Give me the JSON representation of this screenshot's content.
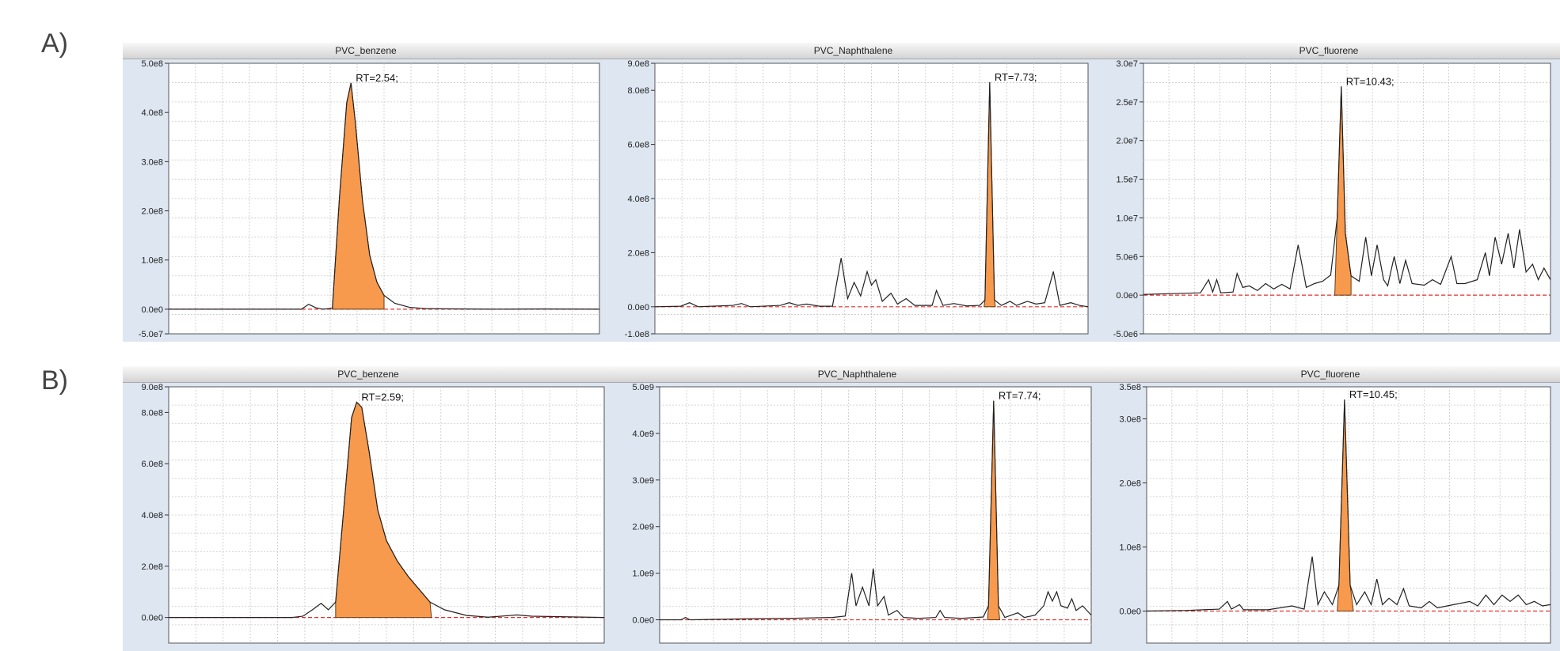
{
  "figure_labels": {
    "a": "A)",
    "b": "B)"
  },
  "colors": {
    "peak_fill": "#f79a4e",
    "trace": "#222222",
    "baseline": "#e03030",
    "panel_bg": "#dde6f1",
    "grid": "#c8c8c8"
  },
  "chart_data": [
    {
      "id": "A1",
      "type": "line",
      "title": "PVC_benzene",
      "annotation": "RT=2.54;",
      "yticks": [
        "5.0e8",
        "4.0e8",
        "3.0e8",
        "2.0e8",
        "1.0e8",
        "0.0e0",
        "-5.0e7"
      ],
      "yvalues": [
        500000000.0,
        400000000.0,
        300000000.0,
        200000000.0,
        100000000.0,
        0,
        -50000000.0
      ],
      "ylim": [
        -50000000.0,
        500000000.0
      ],
      "xlim": [
        0,
        6
      ],
      "peak_rt": 2.54,
      "peak_height": 460000000.0,
      "points": [
        [
          0,
          0
        ],
        [
          1.0,
          0
        ],
        [
          1.85,
          0.0
        ],
        [
          1.95,
          10000000.0
        ],
        [
          2.05,
          3000000.0
        ],
        [
          2.15,
          0.0
        ],
        [
          2.28,
          2000000.0
        ],
        [
          2.38,
          230000000.0
        ],
        [
          2.48,
          420000000.0
        ],
        [
          2.54,
          460000000.0
        ],
        [
          2.6,
          380000000.0
        ],
        [
          2.7,
          220000000.0
        ],
        [
          2.8,
          110000000.0
        ],
        [
          2.9,
          55000000.0
        ],
        [
          3.0,
          28000000.0
        ],
        [
          3.15,
          12000000.0
        ],
        [
          3.35,
          4000000.0
        ],
        [
          3.6,
          1000000.0
        ],
        [
          4.5,
          0
        ],
        [
          5.2,
          500000.0
        ],
        [
          6,
          0
        ]
      ],
      "fill_range": [
        2.28,
        3.0
      ]
    },
    {
      "id": "A2",
      "type": "line",
      "title": "PVC_Naphthalene",
      "annotation": "RT=7.73;",
      "yticks": [
        "9.0e8",
        "8.0e8",
        "6.0e8",
        "4.0e8",
        "2.0e8",
        "0.0e0",
        "-1.0e8"
      ],
      "yvalues": [
        900000000.0,
        800000000.0,
        600000000.0,
        400000000.0,
        200000000.0,
        0,
        -100000000.0
      ],
      "ylim": [
        -100000000.0,
        900000000.0
      ],
      "xlim": [
        0,
        10
      ],
      "peak_rt": 7.73,
      "peak_height": 830000000.0,
      "points": [
        [
          0,
          0
        ],
        [
          0.6,
          2000000.0
        ],
        [
          0.8,
          15000000.0
        ],
        [
          1.0,
          0
        ],
        [
          1.8,
          5000000.0
        ],
        [
          2.0,
          12000000.0
        ],
        [
          2.2,
          0
        ],
        [
          2.9,
          5000000.0
        ],
        [
          3.1,
          15000000.0
        ],
        [
          3.3,
          5000000.0
        ],
        [
          3.5,
          10000000.0
        ],
        [
          3.8,
          2000000.0
        ],
        [
          4.1,
          2000000.0
        ],
        [
          4.3,
          180000000.0
        ],
        [
          4.45,
          30000000.0
        ],
        [
          4.6,
          90000000.0
        ],
        [
          4.75,
          40000000.0
        ],
        [
          4.9,
          130000000.0
        ],
        [
          5.0,
          80000000.0
        ],
        [
          5.1,
          100000000.0
        ],
        [
          5.25,
          20000000.0
        ],
        [
          5.45,
          50000000.0
        ],
        [
          5.6,
          10000000.0
        ],
        [
          5.8,
          30000000.0
        ],
        [
          6.0,
          5000000.0
        ],
        [
          6.4,
          5000000.0
        ],
        [
          6.5,
          60000000.0
        ],
        [
          6.65,
          5000000.0
        ],
        [
          6.9,
          12000000.0
        ],
        [
          7.2,
          3000000.0
        ],
        [
          7.5,
          5000000.0
        ],
        [
          7.62,
          25000000.0
        ],
        [
          7.73,
          830000000.0
        ],
        [
          7.84,
          25000000.0
        ],
        [
          8.0,
          5000000.0
        ],
        [
          8.2,
          20000000.0
        ],
        [
          8.35,
          5000000.0
        ],
        [
          8.6,
          20000000.0
        ],
        [
          8.8,
          10000000.0
        ],
        [
          9.0,
          15000000.0
        ],
        [
          9.2,
          130000000.0
        ],
        [
          9.35,
          5000000.0
        ],
        [
          9.6,
          15000000.0
        ],
        [
          9.8,
          5000000.0
        ],
        [
          10,
          0
        ]
      ],
      "fill_range": [
        7.6,
        7.86
      ]
    },
    {
      "id": "A3",
      "type": "line",
      "title": "PVC_fluorene",
      "annotation": "RT=10.43;",
      "yticks": [
        "3.0e7",
        "2.5e7",
        "2.0e7",
        "1.5e7",
        "1.0e7",
        "5.0e6",
        "0.0e0",
        "-5.0e6"
      ],
      "yvalues": [
        30000000.0,
        25000000.0,
        20000000.0,
        15000000.0,
        10000000.0,
        5000000.0,
        0,
        -5000000.0
      ],
      "ylim": [
        -5000000.0,
        30000000.0
      ],
      "xlim": [
        8,
        13
      ],
      "peak_rt": 10.43,
      "peak_height": 27000000.0,
      "points": [
        [
          8,
          100000.0
        ],
        [
          8.7,
          300000.0
        ],
        [
          8.8,
          2000000.0
        ],
        [
          8.85,
          400000.0
        ],
        [
          8.9,
          2000000.0
        ],
        [
          8.95,
          300000.0
        ],
        [
          9.1,
          400000.0
        ],
        [
          9.15,
          2800000.0
        ],
        [
          9.22,
          1000000.0
        ],
        [
          9.3,
          1200000.0
        ],
        [
          9.4,
          600000.0
        ],
        [
          9.5,
          1500000.0
        ],
        [
          9.6,
          800000.0
        ],
        [
          9.7,
          1400000.0
        ],
        [
          9.8,
          800000.0
        ],
        [
          9.9,
          6500000.0
        ],
        [
          10.0,
          1000000.0
        ],
        [
          10.1,
          1500000.0
        ],
        [
          10.2,
          1800000.0
        ],
        [
          10.3,
          2600000.0
        ],
        [
          10.38,
          10000000.0
        ],
        [
          10.43,
          27000000.0
        ],
        [
          10.48,
          8000000.0
        ],
        [
          10.55,
          2500000.0
        ],
        [
          10.65,
          1800000.0
        ],
        [
          10.73,
          7500000.0
        ],
        [
          10.8,
          2500000.0
        ],
        [
          10.87,
          6500000.0
        ],
        [
          10.95,
          2000000.0
        ],
        [
          11.0,
          1200000.0
        ],
        [
          11.08,
          5000000.0
        ],
        [
          11.15,
          1500000.0
        ],
        [
          11.22,
          4500000.0
        ],
        [
          11.3,
          1500000.0
        ],
        [
          11.45,
          1300000.0
        ],
        [
          11.55,
          2000000.0
        ],
        [
          11.65,
          1400000.0
        ],
        [
          11.78,
          5000000.0
        ],
        [
          11.85,
          1500000.0
        ],
        [
          11.95,
          1500000.0
        ],
        [
          12.1,
          2000000.0
        ],
        [
          12.2,
          5500000.0
        ],
        [
          12.25,
          2500000.0
        ],
        [
          12.32,
          7500000.0
        ],
        [
          12.4,
          4000000.0
        ],
        [
          12.48,
          8000000.0
        ],
        [
          12.55,
          3500000.0
        ],
        [
          12.62,
          8500000.0
        ],
        [
          12.7,
          3000000.0
        ],
        [
          12.78,
          4000000.0
        ],
        [
          12.85,
          2000000.0
        ],
        [
          12.92,
          3500000.0
        ],
        [
          13,
          2000000.0
        ]
      ],
      "fill_range": [
        10.35,
        10.55
      ]
    },
    {
      "id": "B1",
      "type": "line",
      "title": "PVC_benzene",
      "annotation": "RT=2.59;",
      "yticks": [
        "9.0e8",
        "8.0e8",
        "6.0e8",
        "4.0e8",
        "2.0e8",
        "0.0e0"
      ],
      "yvalues": [
        900000000.0,
        800000000.0,
        600000000.0,
        400000000.0,
        200000000.0,
        0
      ],
      "ylim": [
        -100000000.0,
        900000000.0
      ],
      "xlim": [
        0,
        6
      ],
      "peak_rt": 2.59,
      "peak_height": 840000000.0,
      "points": [
        [
          0,
          0
        ],
        [
          1.0,
          0
        ],
        [
          1.7,
          0.0
        ],
        [
          1.85,
          5000000.0
        ],
        [
          1.98,
          30000000.0
        ],
        [
          2.1,
          55000000.0
        ],
        [
          2.2,
          30000000.0
        ],
        [
          2.3,
          60000000.0
        ],
        [
          2.42,
          450000000.0
        ],
        [
          2.52,
          780000000.0
        ],
        [
          2.59,
          840000000.0
        ],
        [
          2.66,
          820000000.0
        ],
        [
          2.76,
          650000000.0
        ],
        [
          2.88,
          420000000.0
        ],
        [
          3.0,
          300000000.0
        ],
        [
          3.15,
          220000000.0
        ],
        [
          3.3,
          160000000.0
        ],
        [
          3.45,
          110000000.0
        ],
        [
          3.6,
          60000000.0
        ],
        [
          3.8,
          30000000.0
        ],
        [
          4.1,
          8000000.0
        ],
        [
          4.4,
          1000000.0
        ],
        [
          4.8,
          10000000.0
        ],
        [
          5.0,
          5000000.0
        ],
        [
          6,
          0
        ]
      ],
      "fill_range": [
        2.3,
        3.62
      ]
    },
    {
      "id": "B2",
      "type": "line",
      "title": "PVC_Naphthalene",
      "annotation": "RT=7.74;",
      "yticks": [
        "5.0e9",
        "4.0e9",
        "3.0e9",
        "2.0e9",
        "1.0e9",
        "0.0e0"
      ],
      "yvalues": [
        5000000000.0,
        4000000000.0,
        3000000000.0,
        2000000000.0,
        1000000000.0,
        0
      ],
      "ylim": [
        -500000000.0,
        5000000000.0
      ],
      "xlim": [
        0,
        10
      ],
      "peak_rt": 7.74,
      "peak_height": 4700000000.0,
      "points": [
        [
          0,
          0
        ],
        [
          0.5,
          0
        ],
        [
          0.6,
          50000000.0
        ],
        [
          0.7,
          0
        ],
        [
          2.0,
          20000000.0
        ],
        [
          3.0,
          30000000.0
        ],
        [
          4.0,
          50000000.0
        ],
        [
          4.3,
          80000000.0
        ],
        [
          4.45,
          1000000000.0
        ],
        [
          4.55,
          300000000.0
        ],
        [
          4.7,
          700000000.0
        ],
        [
          4.85,
          300000000.0
        ],
        [
          4.95,
          1100000000.0
        ],
        [
          5.05,
          300000000.0
        ],
        [
          5.2,
          500000000.0
        ],
        [
          5.3,
          100000000.0
        ],
        [
          5.5,
          200000000.0
        ],
        [
          5.65,
          50000000.0
        ],
        [
          6.0,
          30000000.0
        ],
        [
          6.4,
          50000000.0
        ],
        [
          6.5,
          200000000.0
        ],
        [
          6.6,
          50000000.0
        ],
        [
          7.0,
          30000000.0
        ],
        [
          7.5,
          60000000.0
        ],
        [
          7.62,
          300000000.0
        ],
        [
          7.74,
          4700000000.0
        ],
        [
          7.85,
          300000000.0
        ],
        [
          8.0,
          50000000.0
        ],
        [
          8.3,
          150000000.0
        ],
        [
          8.45,
          50000000.0
        ],
        [
          8.7,
          100000000.0
        ],
        [
          8.9,
          300000000.0
        ],
        [
          9.0,
          600000000.0
        ],
        [
          9.1,
          400000000.0
        ],
        [
          9.2,
          600000000.0
        ],
        [
          9.3,
          300000000.0
        ],
        [
          9.45,
          250000000.0
        ],
        [
          9.55,
          450000000.0
        ],
        [
          9.65,
          200000000.0
        ],
        [
          9.8,
          300000000.0
        ],
        [
          10,
          100000000.0
        ]
      ],
      "fill_range": [
        7.6,
        7.88
      ]
    },
    {
      "id": "B3",
      "type": "line",
      "title": "PVC_fluorene",
      "annotation": "RT=10.45;",
      "yticks": [
        "3.5e8",
        "3.0e8",
        "2.0e8",
        "1.0e8",
        "0.0e0"
      ],
      "yvalues": [
        350000000.0,
        300000000.0,
        200000000.0,
        100000000.0,
        0
      ],
      "ylim": [
        -50000000.0,
        350000000.0
      ],
      "xlim": [
        8,
        13
      ],
      "peak_rt": 10.45,
      "peak_height": 330000000.0,
      "points": [
        [
          8,
          0
        ],
        [
          8.5,
          1000000.0
        ],
        [
          8.9,
          3000000.0
        ],
        [
          9.0,
          15000000.0
        ],
        [
          9.05,
          3000000.0
        ],
        [
          9.15,
          10000000.0
        ],
        [
          9.2,
          2000000.0
        ],
        [
          9.5,
          2000000.0
        ],
        [
          9.8,
          8000000.0
        ],
        [
          9.95,
          3000000.0
        ],
        [
          10.05,
          85000000.0
        ],
        [
          10.12,
          10000000.0
        ],
        [
          10.2,
          30000000.0
        ],
        [
          10.3,
          10000000.0
        ],
        [
          10.38,
          40000000.0
        ],
        [
          10.45,
          330000000.0
        ],
        [
          10.52,
          40000000.0
        ],
        [
          10.6,
          10000000.0
        ],
        [
          10.7,
          30000000.0
        ],
        [
          10.78,
          10000000.0
        ],
        [
          10.85,
          50000000.0
        ],
        [
          10.92,
          10000000.0
        ],
        [
          11.0,
          20000000.0
        ],
        [
          11.1,
          10000000.0
        ],
        [
          11.18,
          35000000.0
        ],
        [
          11.25,
          8000000.0
        ],
        [
          11.4,
          5000000.0
        ],
        [
          11.5,
          15000000.0
        ],
        [
          11.6,
          5000000.0
        ],
        [
          11.8,
          10000000.0
        ],
        [
          12.0,
          15000000.0
        ],
        [
          12.1,
          8000000.0
        ],
        [
          12.2,
          25000000.0
        ],
        [
          12.3,
          10000000.0
        ],
        [
          12.4,
          25000000.0
        ],
        [
          12.5,
          15000000.0
        ],
        [
          12.6,
          25000000.0
        ],
        [
          12.7,
          10000000.0
        ],
        [
          12.8,
          15000000.0
        ],
        [
          12.9,
          8000000.0
        ],
        [
          13,
          10000000.0
        ]
      ],
      "fill_range": [
        10.36,
        10.56
      ]
    }
  ]
}
